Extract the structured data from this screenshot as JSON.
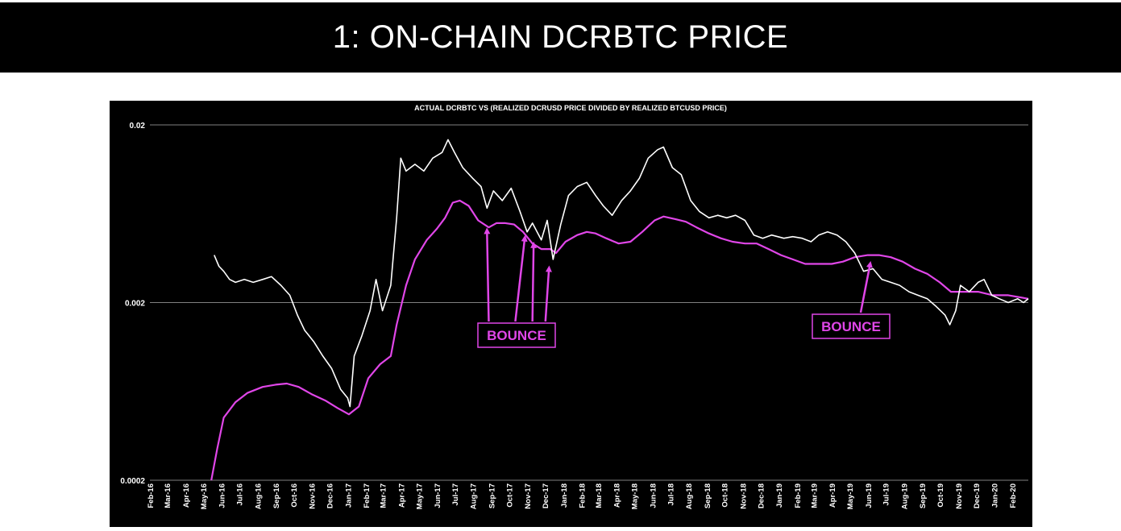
{
  "slide": {
    "title": "1: ON-CHAIN DCRBTC PRICE"
  },
  "colors": {
    "background": "#000000",
    "actual_series": "#ffffff",
    "ratio_series": "#e046e8",
    "annotation": "#e046e8",
    "gridline": "#808080"
  },
  "chart_data": {
    "type": "line",
    "title": "ACTUAL DCRBTC VS (REALIZED DCRUSD PRICE DIVIDED BY REALIZED BTCUSD PRICE)",
    "y_scale": "log",
    "ylim": [
      0.0002,
      0.02
    ],
    "y_ticks": [
      0.0002,
      0.002,
      0.02
    ],
    "y_tick_labels": [
      "0.0002",
      "0.002",
      "0.02"
    ],
    "grid": "horizontal",
    "legend": "none",
    "x_tick_labels": [
      "Feb-16",
      "Mar-16",
      "Apr-16",
      "May-16",
      "Jun-16",
      "Jul-16",
      "Aug-16",
      "Sep-16",
      "Oct-16",
      "Nov-16",
      "Dec-16",
      "Jan-17",
      "Feb-17",
      "Mar-17",
      "Apr-17",
      "May-17",
      "Jun-17",
      "Jul-17",
      "Aug-17",
      "Sep-17",
      "Oct-17",
      "Nov-17",
      "Dec-17",
      "Jan-18",
      "Feb-18",
      "Mar-18",
      "Apr-18",
      "May-18",
      "Jun-18",
      "Jul-18",
      "Aug-18",
      "Sep-18",
      "Oct-18",
      "Nov-18",
      "Dec-18",
      "Jan-19",
      "Feb-19",
      "Mar-19",
      "Apr-19",
      "May-19",
      "Jun-19",
      "Jul-19",
      "Aug-19",
      "Sep-19",
      "Oct-19",
      "Nov-19",
      "Dec-19",
      "Jan-20",
      "Feb-20"
    ],
    "x_range": [
      "2016-02-01",
      "2020-02-28"
    ],
    "series": [
      {
        "key": "actual",
        "points": [
          [
            "2016-05-20",
            0.0037
          ],
          [
            "2016-05-28",
            0.0032
          ],
          [
            "2016-06-05",
            0.003
          ],
          [
            "2016-06-15",
            0.0027
          ],
          [
            "2016-06-25",
            0.0026
          ],
          [
            "2016-07-10",
            0.0027
          ],
          [
            "2016-07-25",
            0.0026
          ],
          [
            "2016-08-10",
            0.0027
          ],
          [
            "2016-08-25",
            0.0028
          ],
          [
            "2016-09-10",
            0.0025
          ],
          [
            "2016-09-25",
            0.0022
          ],
          [
            "2016-10-08",
            0.0017
          ],
          [
            "2016-10-20",
            0.0014
          ],
          [
            "2016-11-05",
            0.0012
          ],
          [
            "2016-11-20",
            0.001
          ],
          [
            "2016-12-05",
            0.00085
          ],
          [
            "2016-12-20",
            0.00065
          ],
          [
            "2017-01-01",
            0.00058
          ],
          [
            "2017-01-05",
            0.00052
          ],
          [
            "2017-01-12",
            0.001
          ],
          [
            "2017-01-25",
            0.0013
          ],
          [
            "2017-02-08",
            0.0018
          ],
          [
            "2017-02-18",
            0.0027
          ],
          [
            "2017-03-01",
            0.0018
          ],
          [
            "2017-03-15",
            0.0025
          ],
          [
            "2017-03-25",
            0.006
          ],
          [
            "2017-04-01",
            0.013
          ],
          [
            "2017-04-10",
            0.011
          ],
          [
            "2017-04-25",
            0.012
          ],
          [
            "2017-05-10",
            0.011
          ],
          [
            "2017-05-25",
            0.013
          ],
          [
            "2017-06-10",
            0.014
          ],
          [
            "2017-06-20",
            0.0165
          ],
          [
            "2017-07-01",
            0.014
          ],
          [
            "2017-07-15",
            0.0115
          ],
          [
            "2017-08-01",
            0.01
          ],
          [
            "2017-08-15",
            0.009
          ],
          [
            "2017-08-25",
            0.0068
          ],
          [
            "2017-09-05",
            0.0085
          ],
          [
            "2017-09-20",
            0.0075
          ],
          [
            "2017-10-05",
            0.0088
          ],
          [
            "2017-10-20",
            0.0065
          ],
          [
            "2017-11-01",
            0.005
          ],
          [
            "2017-11-10",
            0.0056
          ],
          [
            "2017-11-25",
            0.0045
          ],
          [
            "2017-12-05",
            0.0058
          ],
          [
            "2017-12-15",
            0.0035
          ],
          [
            "2017-12-28",
            0.0055
          ],
          [
            "2018-01-10",
            0.008
          ],
          [
            "2018-01-25",
            0.009
          ],
          [
            "2018-02-10",
            0.0095
          ],
          [
            "2018-02-25",
            0.008
          ],
          [
            "2018-03-10",
            0.007
          ],
          [
            "2018-03-25",
            0.0062
          ],
          [
            "2018-04-10",
            0.0075
          ],
          [
            "2018-04-25",
            0.0085
          ],
          [
            "2018-05-10",
            0.01
          ],
          [
            "2018-05-25",
            0.013
          ],
          [
            "2018-06-10",
            0.0145
          ],
          [
            "2018-06-20",
            0.015
          ],
          [
            "2018-07-05",
            0.0115
          ],
          [
            "2018-07-20",
            0.0105
          ],
          [
            "2018-08-05",
            0.0075
          ],
          [
            "2018-08-20",
            0.0065
          ],
          [
            "2018-09-05",
            0.006
          ],
          [
            "2018-09-20",
            0.0062
          ],
          [
            "2018-10-05",
            0.006
          ],
          [
            "2018-10-20",
            0.0062
          ],
          [
            "2018-11-05",
            0.0058
          ],
          [
            "2018-11-20",
            0.0048
          ],
          [
            "2018-12-05",
            0.0046
          ],
          [
            "2018-12-20",
            0.0048
          ],
          [
            "2019-01-10",
            0.0046
          ],
          [
            "2019-01-25",
            0.0047
          ],
          [
            "2019-02-10",
            0.0046
          ],
          [
            "2019-02-25",
            0.0044
          ],
          [
            "2019-03-10",
            0.0048
          ],
          [
            "2019-03-25",
            0.005
          ],
          [
            "2019-04-10",
            0.0048
          ],
          [
            "2019-04-25",
            0.0044
          ],
          [
            "2019-05-10",
            0.0038
          ],
          [
            "2019-05-25",
            0.003
          ],
          [
            "2019-06-10",
            0.0031
          ],
          [
            "2019-06-25",
            0.0027
          ],
          [
            "2019-07-10",
            0.0026
          ],
          [
            "2019-07-25",
            0.0025
          ],
          [
            "2019-08-10",
            0.0023
          ],
          [
            "2019-08-25",
            0.0022
          ],
          [
            "2019-09-10",
            0.0021
          ],
          [
            "2019-09-25",
            0.0019
          ],
          [
            "2019-10-10",
            0.0017
          ],
          [
            "2019-10-18",
            0.0015
          ],
          [
            "2019-10-28",
            0.0018
          ],
          [
            "2019-11-05",
            0.0025
          ],
          [
            "2019-11-20",
            0.0023
          ],
          [
            "2019-12-05",
            0.0026
          ],
          [
            "2019-12-15",
            0.0027
          ],
          [
            "2019-12-28",
            0.0022
          ],
          [
            "2020-01-10",
            0.0021
          ],
          [
            "2020-01-25",
            0.002
          ],
          [
            "2020-02-10",
            0.0021
          ],
          [
            "2020-02-20",
            0.002
          ],
          [
            "2020-02-28",
            0.0021
          ]
        ]
      },
      {
        "key": "ratio",
        "points": [
          [
            "2016-05-15",
            0.0002
          ],
          [
            "2016-05-25",
            0.0003
          ],
          [
            "2016-06-05",
            0.00045
          ],
          [
            "2016-06-25",
            0.00055
          ],
          [
            "2016-07-15",
            0.00062
          ],
          [
            "2016-08-10",
            0.00067
          ],
          [
            "2016-09-01",
            0.00069
          ],
          [
            "2016-09-20",
            0.0007
          ],
          [
            "2016-10-10",
            0.00067
          ],
          [
            "2016-11-01",
            0.00061
          ],
          [
            "2016-11-25",
            0.00056
          ],
          [
            "2016-12-15",
            0.00051
          ],
          [
            "2017-01-03",
            0.00047
          ],
          [
            "2017-01-20",
            0.00052
          ],
          [
            "2017-02-05",
            0.00075
          ],
          [
            "2017-02-25",
            0.0009
          ],
          [
            "2017-03-15",
            0.001
          ],
          [
            "2017-03-25",
            0.0015
          ],
          [
            "2017-04-10",
            0.0025
          ],
          [
            "2017-04-25",
            0.0035
          ],
          [
            "2017-05-15",
            0.0045
          ],
          [
            "2017-06-01",
            0.0052
          ],
          [
            "2017-06-15",
            0.006
          ],
          [
            "2017-06-28",
            0.0073
          ],
          [
            "2017-07-10",
            0.0075
          ],
          [
            "2017-07-25",
            0.007
          ],
          [
            "2017-08-10",
            0.0058
          ],
          [
            "2017-08-28",
            0.0053
          ],
          [
            "2017-09-10",
            0.0056
          ],
          [
            "2017-09-25",
            0.0056
          ],
          [
            "2017-10-10",
            0.0055
          ],
          [
            "2017-10-25",
            0.005
          ],
          [
            "2017-11-10",
            0.0043
          ],
          [
            "2017-11-25",
            0.004
          ],
          [
            "2017-12-10",
            0.004
          ],
          [
            "2017-12-20",
            0.0038
          ],
          [
            "2018-01-05",
            0.0044
          ],
          [
            "2018-01-25",
            0.0048
          ],
          [
            "2018-02-10",
            0.005
          ],
          [
            "2018-02-25",
            0.0049
          ],
          [
            "2018-03-15",
            0.0046
          ],
          [
            "2018-04-05",
            0.0043
          ],
          [
            "2018-04-25",
            0.0044
          ],
          [
            "2018-05-15",
            0.005
          ],
          [
            "2018-06-05",
            0.0058
          ],
          [
            "2018-06-20",
            0.0061
          ],
          [
            "2018-07-10",
            0.0059
          ],
          [
            "2018-07-28",
            0.0057
          ],
          [
            "2018-08-15",
            0.0053
          ],
          [
            "2018-09-05",
            0.0049
          ],
          [
            "2018-09-25",
            0.0046
          ],
          [
            "2018-10-15",
            0.0044
          ],
          [
            "2018-11-05",
            0.0043
          ],
          [
            "2018-11-25",
            0.0043
          ],
          [
            "2018-12-15",
            0.004
          ],
          [
            "2019-01-05",
            0.0037
          ],
          [
            "2019-01-25",
            0.0035
          ],
          [
            "2019-02-15",
            0.0033
          ],
          [
            "2019-03-10",
            0.0033
          ],
          [
            "2019-04-01",
            0.0033
          ],
          [
            "2019-04-20",
            0.0034
          ],
          [
            "2019-05-10",
            0.0036
          ],
          [
            "2019-06-01",
            0.0037
          ],
          [
            "2019-06-20",
            0.0037
          ],
          [
            "2019-07-10",
            0.0036
          ],
          [
            "2019-07-30",
            0.0034
          ],
          [
            "2019-08-20",
            0.0031
          ],
          [
            "2019-09-10",
            0.0029
          ],
          [
            "2019-10-01",
            0.0026
          ],
          [
            "2019-10-20",
            0.0023
          ],
          [
            "2019-11-10",
            0.0023
          ],
          [
            "2019-12-05",
            0.0023
          ],
          [
            "2019-12-30",
            0.0022
          ],
          [
            "2020-01-25",
            0.0022
          ],
          [
            "2020-02-28",
            0.0021
          ]
        ]
      }
    ],
    "annotations": [
      {
        "label": "BOUNCE",
        "arrows_from": [
          "2017-08-28",
          "2017-10-12",
          "2017-11-10",
          "2017-12-02"
        ],
        "arrow_tips": [
          [
            "2017-08-25",
            0.0054
          ],
          [
            "2017-10-28",
            0.0049
          ],
          [
            "2017-11-12",
            0.0045
          ],
          [
            "2017-12-08",
            0.0033
          ]
        ]
      },
      {
        "label": "BOUNCE",
        "arrows_from": [
          "2019-05-20"
        ],
        "arrow_tips": [
          [
            "2019-06-05",
            0.0035
          ]
        ]
      }
    ]
  }
}
